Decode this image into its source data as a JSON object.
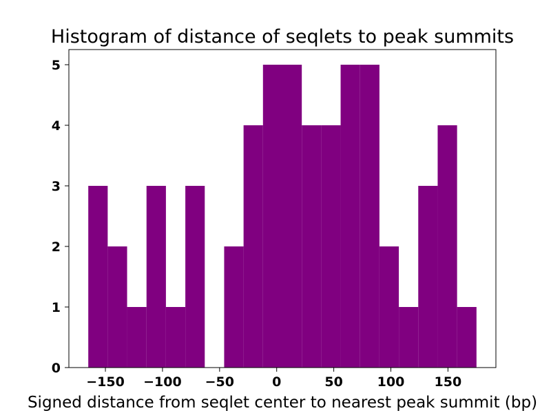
{
  "chart_data": {
    "type": "bar",
    "title": "Histogram of distance of seqlets to peak summits",
    "xlabel": "Signed distance from seqlet center to nearest peak summit (bp)",
    "ylabel": "",
    "bar_color": "#800080",
    "xlim": [
      -182,
      192
    ],
    "ylim": [
      0,
      5.25
    ],
    "bin_edges": [
      -165,
      -148,
      -131,
      -114,
      -97,
      -80,
      -63,
      -46,
      -29,
      -12,
      5,
      22,
      39,
      56,
      73,
      90,
      107,
      124,
      141,
      158,
      175
    ],
    "values": [
      3,
      2,
      1,
      3,
      1,
      3,
      0,
      2,
      4,
      5,
      5,
      4,
      4,
      5,
      5,
      2,
      1,
      3,
      4,
      1
    ],
    "xticks": [
      -150,
      -100,
      -50,
      0,
      50,
      100,
      150
    ],
    "xtick_labels": [
      "−150",
      "−100",
      "−50",
      "0",
      "50",
      "100",
      "150"
    ],
    "yticks": [
      0,
      1,
      2,
      3,
      4,
      5
    ],
    "ytick_labels": [
      "0",
      "1",
      "2",
      "3",
      "4",
      "5"
    ],
    "grid": false,
    "legend": "none"
  }
}
